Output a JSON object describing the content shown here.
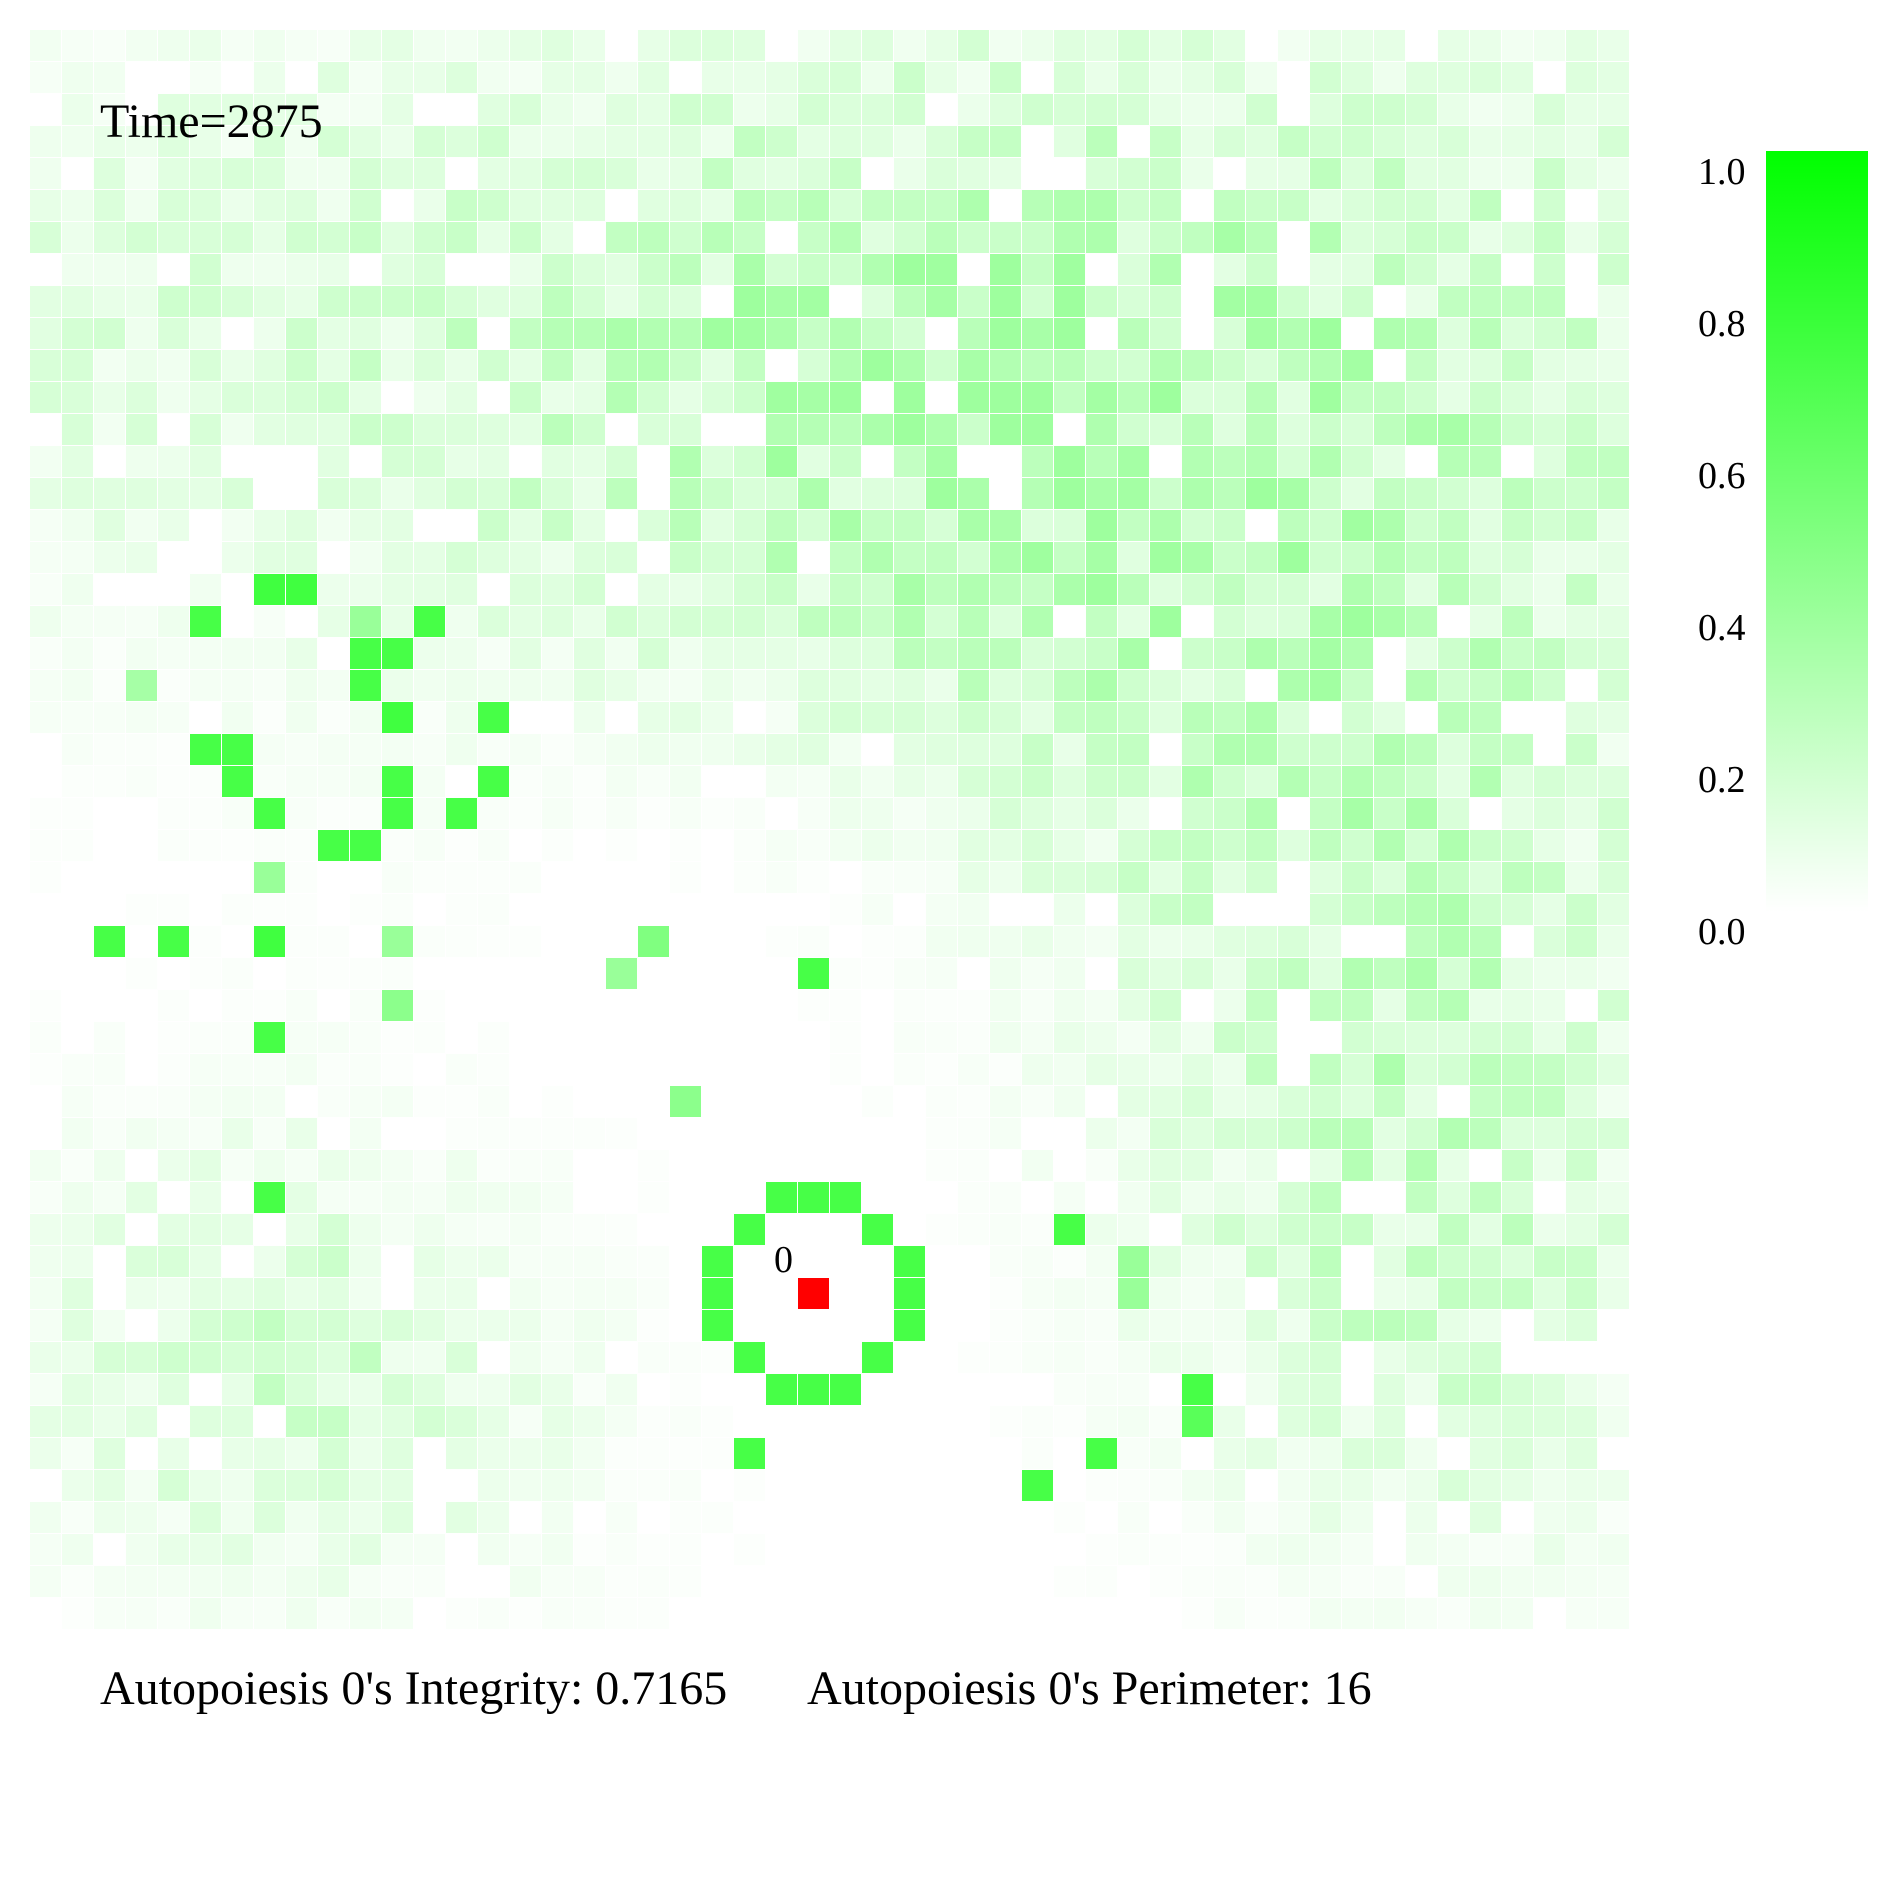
{
  "chart_data": {
    "type": "heatmap",
    "time_label": "Time=2875",
    "grid_cols": 50,
    "grid_rows": 50,
    "value_range": [
      0,
      1
    ],
    "colormap": {
      "low": "#ffffff",
      "high": "#00ff00"
    },
    "colorbar_ticks": [
      "1.0",
      "0.8",
      "0.6",
      "0.4",
      "0.2",
      "0.0"
    ],
    "autopoiesis": {
      "id_label": "0",
      "center_cell": {
        "col": 24,
        "row": 39
      },
      "center_color": "#ff0000",
      "membrane_value": 0.72,
      "membrane_cells": [
        {
          "col": 23,
          "row": 36
        },
        {
          "col": 24,
          "row": 36
        },
        {
          "col": 25,
          "row": 36
        },
        {
          "col": 22,
          "row": 37
        },
        {
          "col": 26,
          "row": 37
        },
        {
          "col": 21,
          "row": 38
        },
        {
          "col": 27,
          "row": 38
        },
        {
          "col": 21,
          "row": 39
        },
        {
          "col": 27,
          "row": 39
        },
        {
          "col": 21,
          "row": 40
        },
        {
          "col": 27,
          "row": 40
        },
        {
          "col": 22,
          "row": 41
        },
        {
          "col": 26,
          "row": 41
        },
        {
          "col": 23,
          "row": 42
        },
        {
          "col": 24,
          "row": 42
        },
        {
          "col": 25,
          "row": 42
        }
      ]
    },
    "bright_cells": [
      {
        "col": 7,
        "row": 17,
        "v": 0.75
      },
      {
        "col": 8,
        "row": 17,
        "v": 0.75
      },
      {
        "col": 5,
        "row": 18,
        "v": 0.72
      },
      {
        "col": 12,
        "row": 18,
        "v": 0.72
      },
      {
        "col": 10,
        "row": 18,
        "v": 0.4
      },
      {
        "col": 10,
        "row": 19,
        "v": 0.72
      },
      {
        "col": 11,
        "row": 19,
        "v": 0.72
      },
      {
        "col": 10,
        "row": 20,
        "v": 0.72
      },
      {
        "col": 3,
        "row": 20,
        "v": 0.35
      },
      {
        "col": 11,
        "row": 21,
        "v": 0.75
      },
      {
        "col": 14,
        "row": 21,
        "v": 0.72
      },
      {
        "col": 5,
        "row": 22,
        "v": 0.72
      },
      {
        "col": 6,
        "row": 22,
        "v": 0.72
      },
      {
        "col": 6,
        "row": 23,
        "v": 0.72
      },
      {
        "col": 11,
        "row": 23,
        "v": 0.72
      },
      {
        "col": 14,
        "row": 23,
        "v": 0.72
      },
      {
        "col": 7,
        "row": 24,
        "v": 0.72
      },
      {
        "col": 11,
        "row": 24,
        "v": 0.72
      },
      {
        "col": 13,
        "row": 24,
        "v": 0.72
      },
      {
        "col": 9,
        "row": 25,
        "v": 0.72
      },
      {
        "col": 10,
        "row": 25,
        "v": 0.72
      },
      {
        "col": 7,
        "row": 26,
        "v": 0.4
      },
      {
        "col": 2,
        "row": 28,
        "v": 0.72
      },
      {
        "col": 4,
        "row": 28,
        "v": 0.72
      },
      {
        "col": 7,
        "row": 28,
        "v": 0.75
      },
      {
        "col": 19,
        "row": 28,
        "v": 0.5
      },
      {
        "col": 11,
        "row": 28,
        "v": 0.4
      },
      {
        "col": 24,
        "row": 29,
        "v": 0.72
      },
      {
        "col": 18,
        "row": 29,
        "v": 0.4
      },
      {
        "col": 11,
        "row": 30,
        "v": 0.45
      },
      {
        "col": 7,
        "row": 31,
        "v": 0.72
      },
      {
        "col": 20,
        "row": 33,
        "v": 0.45
      },
      {
        "col": 7,
        "row": 36,
        "v": 0.72
      },
      {
        "col": 32,
        "row": 37,
        "v": 0.72
      },
      {
        "col": 34,
        "row": 38,
        "v": 0.4
      },
      {
        "col": 34,
        "row": 39,
        "v": 0.4
      },
      {
        "col": 36,
        "row": 42,
        "v": 0.72
      },
      {
        "col": 36,
        "row": 43,
        "v": 0.65
      },
      {
        "col": 22,
        "row": 44,
        "v": 0.72
      },
      {
        "col": 33,
        "row": 44,
        "v": 0.72
      },
      {
        "col": 31,
        "row": 45,
        "v": 0.72
      }
    ],
    "background_seed": 2875
  },
  "footer": {
    "integrity": "Autopoiesis 0's Integrity: 0.7165",
    "perimeter": "Autopoiesis 0's Perimeter: 16"
  }
}
